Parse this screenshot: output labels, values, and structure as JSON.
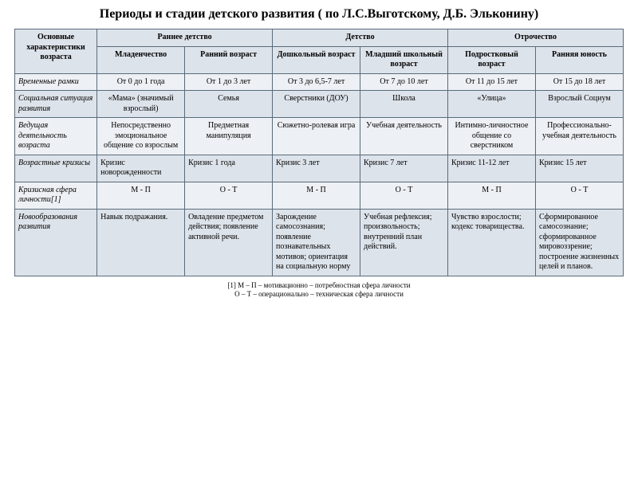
{
  "title": "Периоды и стадии детского развития ( по Л.С.Выготскому, Д.Б. Эльконину)",
  "colors": {
    "header_bg": "#dde3ea",
    "row_even_bg": "#edf0f4",
    "row_odd_bg": "#dde3ea",
    "border": "#5a6b7a",
    "text": "#000000",
    "background": "#ffffff"
  },
  "table": {
    "corner": "Основные характеристики возраста",
    "group_headers": [
      "Раннее детство",
      "Детство",
      "Отрочество"
    ],
    "sub_headers": [
      "Младенчество",
      "Ранний возраст",
      "Дошкольный возраст",
      "Младший школьный возраст",
      "Подростковый возраст",
      "Ранняя юность"
    ],
    "rows": [
      {
        "label": "Временные рамки",
        "cells": [
          "От 0 до 1 года",
          "От 1 до 3 лет",
          "От 3 до 6,5-7 лет",
          "От 7 до 10 лет",
          "От 11 до 15 лет",
          "От 15 до 18 лет"
        ]
      },
      {
        "label": "Социальная ситуация развития",
        "cells": [
          "«Мама» (значимый взрослый)",
          "Семья",
          "Сверстники (ДОУ)",
          "Школа",
          "«Улица»",
          "Взрослый Социум"
        ]
      },
      {
        "label": "Ведущая деятельность возраста",
        "cells": [
          "Непосредственно эмоциональное общение со взрослым",
          "Предметная манипуляция",
          "Сюжетно-ролевая игра",
          "Учебная деятельность",
          "Интимно-личностное общение со сверстником",
          "Профессионально-учебная деятельность"
        ]
      },
      {
        "label": "Возрастные кризисы",
        "cells": [
          "Кризис новорожденности",
          "Кризис 1 года",
          "Кризис 3 лет",
          "Кризис 7 лет",
          "Кризис 11-12 лет",
          "Кризис 15 лет"
        ]
      },
      {
        "label": "Кризисная сфера личности[1]",
        "cells": [
          "М - П",
          "О - Т",
          "М - П",
          "О - Т",
          "М - П",
          "О - Т"
        ]
      },
      {
        "label": "Новообразования развития",
        "cells": [
          "Навык подражания.",
          "Овладение предметом действия; появление активной речи.",
          "Зарождение самосознания; появление познавательных мотивов; ориентация на социальную норму",
          "Учебная рефлексия; произвольность; внутренний план действий.",
          "Чувство взрослости; кодекс товарищества.",
          "Сформированное самосознание; сформированное мировоззрение; построение жизненных целей и планов."
        ]
      }
    ]
  },
  "footnote_line1": "[1] М – П – мотивационно – потребностная сфера личности",
  "footnote_line2": "О – Т – операционально – техническая сфера личности"
}
